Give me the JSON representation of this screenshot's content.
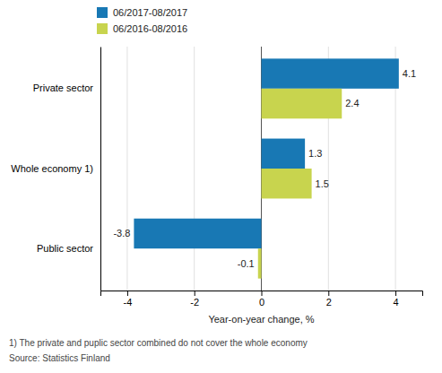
{
  "chart_data": {
    "type": "bar",
    "orientation": "horizontal",
    "categories": [
      "Private sector",
      "Whole economy 1)",
      "Public sector"
    ],
    "series": [
      {
        "name": "06/2017-08/2017",
        "color": "#1878b4",
        "values": [
          4.1,
          1.3,
          -3.8
        ]
      },
      {
        "name": "06/2016-08/2016",
        "color": "#c8d44e",
        "values": [
          2.4,
          1.5,
          -0.1
        ]
      }
    ],
    "xlabel": "Year-on-year change, %",
    "xlim": [
      -4.8,
      4.8
    ],
    "xticks": [
      -4,
      -2,
      0,
      2,
      4
    ],
    "grid": true,
    "legend": "top-left",
    "data_labels": true,
    "annotations": [
      "1) The private and puplic sector combined do not cover the whole economy",
      "Source: Statistics Finland"
    ]
  }
}
